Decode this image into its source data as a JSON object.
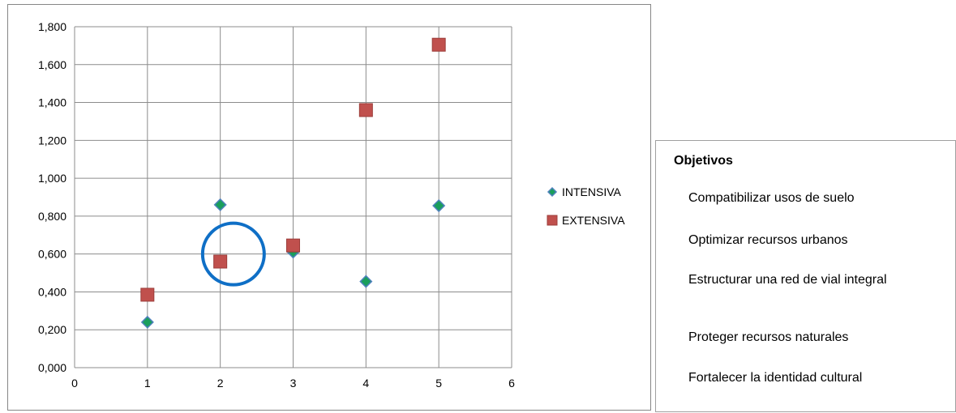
{
  "chart_data": {
    "type": "scatter",
    "xlim": [
      0,
      6
    ],
    "ylim": [
      0,
      1.8
    ],
    "x_ticks": [
      "0",
      "1",
      "2",
      "3",
      "4",
      "5",
      "6"
    ],
    "y_ticks": [
      "0,000",
      "0,200",
      "0,400",
      "0,600",
      "0,800",
      "1,000",
      "1,200",
      "1,400",
      "1,600",
      "1,800"
    ],
    "grid": true,
    "legend_position": "right",
    "series": [
      {
        "name": "INTENSIVA",
        "marker": "diamond",
        "color": "#1a9e5c",
        "edge_color": "#4f81bd",
        "x": [
          1,
          2,
          3,
          4,
          5
        ],
        "y": [
          0.24,
          0.86,
          0.61,
          0.455,
          0.855
        ]
      },
      {
        "name": "EXTENSIVA",
        "marker": "square",
        "color": "#c0504d",
        "x": [
          1,
          2,
          3,
          4,
          5
        ],
        "y": [
          0.385,
          0.56,
          0.645,
          1.36,
          1.705
        ]
      }
    ],
    "annotation": {
      "shape": "circle",
      "color": "#0f6fc6",
      "center": [
        2.18,
        0.6
      ]
    }
  },
  "objectives": {
    "title": "Objetivos",
    "items": [
      "Compatibilizar usos de suelo",
      "Optimizar recursos urbanos",
      "Estructurar una red de vial integral",
      "Proteger recursos naturales",
      "Fortalecer la identidad cultural"
    ]
  }
}
